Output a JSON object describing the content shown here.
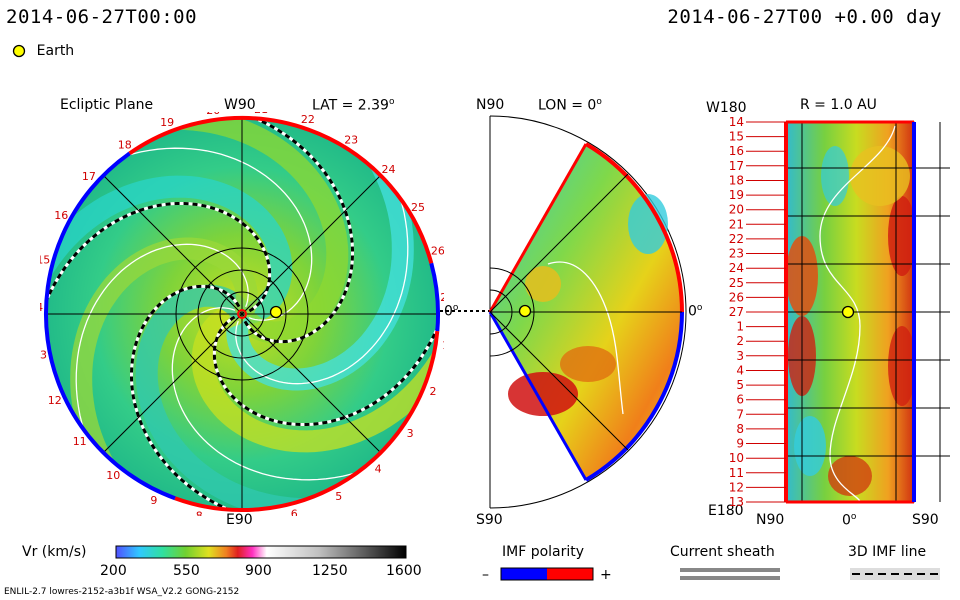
{
  "header": {
    "left_time": "2014-06-27T00:00",
    "right_time": "2014-06-27T00 +0.00 day",
    "earth_legend": "Earth"
  },
  "ecliptic_panel": {
    "title": "Ecliptic Plane",
    "top_label": "W90",
    "bottom_label": "E90",
    "lat_label": "LAT = 2.39",
    "lat_sup": "o",
    "zero_label": "0",
    "zero_sup": "o",
    "rim_numbers": [
      "20",
      "21",
      "22",
      "23",
      "24",
      "25",
      "26",
      "27",
      "1",
      "2",
      "3",
      "4",
      "5",
      "6",
      "7",
      "8",
      "9",
      "10",
      "11",
      "12",
      "13",
      "14",
      "15",
      "16",
      "17",
      "18",
      "19"
    ]
  },
  "meridional_panel": {
    "top_label": "N90",
    "bottom_label": "S90",
    "lon_label": "LON = 0",
    "lon_sup": "o",
    "right_label": "0",
    "right_sup": "o"
  },
  "latlon_panel": {
    "top_label": "W180",
    "r_label": "R = 1.0 AU",
    "bottom_left": "E180",
    "bottom_x_labels": [
      "N90",
      "0",
      "S90"
    ],
    "zero_sup": "o",
    "row_labels": [
      "14",
      "15",
      "16",
      "17",
      "18",
      "19",
      "20",
      "21",
      "22",
      "23",
      "24",
      "25",
      "26",
      "27",
      "1",
      "2",
      "3",
      "4",
      "5",
      "6",
      "7",
      "8",
      "9",
      "10",
      "11",
      "12",
      "13"
    ]
  },
  "colorbar": {
    "title": "Vr (km/s)",
    "ticks": [
      "200",
      "550",
      "900",
      "1250",
      "1600"
    ],
    "range": [
      200,
      1600
    ]
  },
  "legend": {
    "imf_title": "IMF polarity",
    "imf_minus": "–",
    "imf_plus": "+",
    "sheath_title": "Current sheath",
    "imf3d_title": "3D IMF line"
  },
  "footer": {
    "model_info": "ENLIL-2.7 lowres-2152-a3b1f WSA_V2.2 GONG-2152"
  },
  "colors": {
    "positive_polarity": "#ff0000",
    "negative_polarity": "#0000ff",
    "earth": "#ffff00"
  }
}
